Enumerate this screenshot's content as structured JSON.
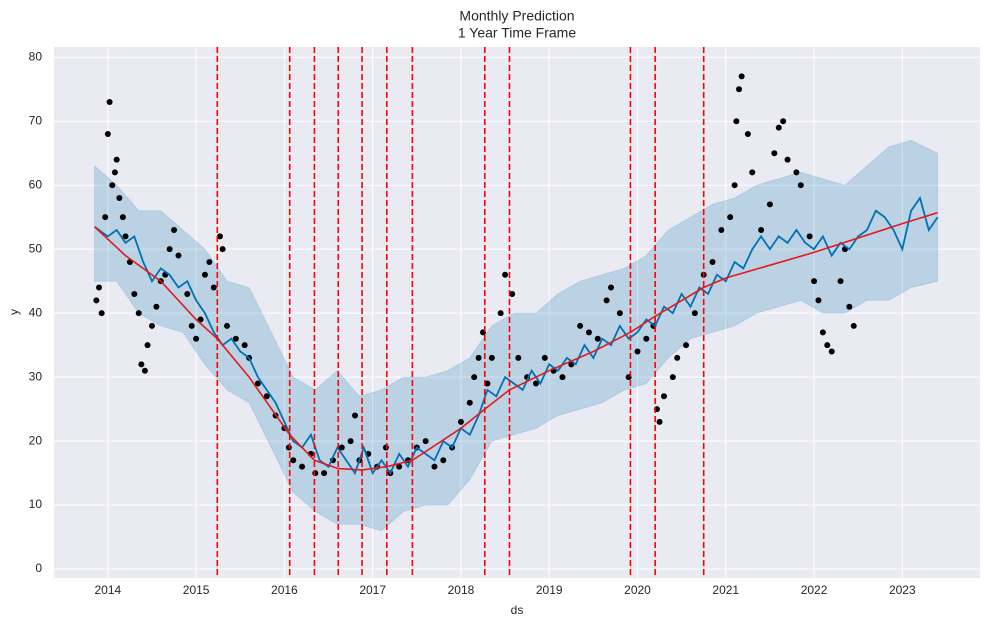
{
  "chart_data": {
    "type": "line",
    "title": "Monthly Prediction",
    "subtitle": "1 Year Time Frame",
    "xlabel": "ds",
    "ylabel": "y",
    "xlim": [
      2013.39,
      2023.88
    ],
    "ylim": [
      -1.4,
      81.6
    ],
    "xticks": [
      2014,
      2015,
      2016,
      2017,
      2018,
      2019,
      2020,
      2021,
      2022,
      2023
    ],
    "yticks": [
      0,
      10,
      20,
      30,
      40,
      50,
      60,
      70,
      80
    ],
    "grid": true,
    "band": {
      "color": "#0072b2",
      "x": [
        2013.85,
        2014.1,
        2014.35,
        2014.6,
        2014.85,
        2015.1,
        2015.35,
        2015.6,
        2015.85,
        2016.1,
        2016.35,
        2016.6,
        2016.85,
        2017.1,
        2017.35,
        2017.6,
        2017.85,
        2018.1,
        2018.35,
        2018.6,
        2018.85,
        2019.1,
        2019.35,
        2019.6,
        2019.85,
        2020.1,
        2020.35,
        2020.6,
        2020.85,
        2021.1,
        2021.35,
        2021.6,
        2021.85,
        2022.1,
        2022.35,
        2022.6,
        2022.85,
        2023.1,
        2023.4
      ],
      "upper": [
        63,
        60,
        56,
        56,
        53,
        50,
        45,
        44,
        37,
        30,
        28,
        31,
        27,
        28,
        30,
        30,
        31,
        33,
        38,
        40,
        40,
        43,
        45,
        46,
        47,
        49,
        53,
        55,
        57,
        58,
        60,
        61,
        62,
        61,
        60,
        63,
        66,
        67,
        65
      ],
      "lower": [
        45,
        45,
        40,
        38,
        37,
        32,
        28,
        26,
        19,
        12,
        9,
        7,
        7,
        6,
        9,
        10,
        10,
        14,
        20,
        21,
        22,
        24,
        25,
        26,
        28,
        29,
        33,
        36,
        37,
        38,
        40,
        41,
        42,
        40,
        40,
        42,
        42,
        44,
        45
      ]
    },
    "forecast": {
      "color": "#0072b2",
      "x": [
        2013.85,
        2014.0,
        2014.1,
        2014.2,
        2014.3,
        2014.4,
        2014.5,
        2014.6,
        2014.7,
        2014.8,
        2014.9,
        2015.0,
        2015.1,
        2015.2,
        2015.3,
        2015.4,
        2015.5,
        2015.6,
        2015.7,
        2015.8,
        2015.9,
        2016.0,
        2016.1,
        2016.2,
        2016.3,
        2016.4,
        2016.5,
        2016.6,
        2016.7,
        2016.8,
        2016.9,
        2017.0,
        2017.1,
        2017.2,
        2017.3,
        2017.4,
        2017.5,
        2017.6,
        2017.7,
        2017.8,
        2017.9,
        2018.0,
        2018.1,
        2018.2,
        2018.3,
        2018.4,
        2018.5,
        2018.6,
        2018.7,
        2018.8,
        2018.9,
        2019.0,
        2019.1,
        2019.2,
        2019.3,
        2019.4,
        2019.5,
        2019.6,
        2019.7,
        2019.8,
        2019.9,
        2020.0,
        2020.1,
        2020.2,
        2020.3,
        2020.4,
        2020.5,
        2020.6,
        2020.7,
        2020.8,
        2020.9,
        2021.0,
        2021.1,
        2021.2,
        2021.3,
        2021.4,
        2021.5,
        2021.6,
        2021.7,
        2021.8,
        2021.9,
        2022.0,
        2022.1,
        2022.2,
        2022.3,
        2022.4,
        2022.5,
        2022.6,
        2022.7,
        2022.8,
        2022.9,
        2023.0,
        2023.1,
        2023.2,
        2023.3,
        2023.4
      ],
      "values": [
        53.5,
        52,
        53,
        51,
        52,
        48,
        45,
        47,
        46,
        44,
        45,
        42,
        40,
        37,
        35,
        36,
        34,
        33,
        30,
        28,
        26,
        23,
        20,
        19,
        21,
        17,
        16,
        19,
        17,
        15,
        19,
        15,
        17,
        15,
        18,
        16,
        19,
        18,
        17,
        20,
        19,
        22,
        21,
        24,
        28,
        27,
        30,
        29,
        28,
        31,
        29,
        32,
        31,
        33,
        32,
        35,
        33,
        36,
        35,
        38,
        36,
        37,
        39,
        38,
        41,
        40,
        43,
        41,
        44,
        43,
        46,
        45,
        48,
        47,
        50,
        52,
        50,
        52,
        51,
        53,
        51,
        50,
        52,
        49,
        51,
        50,
        52,
        53,
        56,
        55,
        53,
        50,
        56,
        58,
        53,
        55
      ]
    },
    "trend": {
      "color": "#e41a1c",
      "x": [
        2013.85,
        2014.2,
        2014.6,
        2015.0,
        2015.24,
        2015.6,
        2016.06,
        2016.34,
        2016.61,
        2016.88,
        2017.16,
        2017.45,
        2018.0,
        2018.27,
        2018.55,
        2019.0,
        2019.5,
        2019.92,
        2020.2,
        2020.75,
        2021.0,
        2022.0,
        2023.0,
        2023.4
      ],
      "values": [
        53.5,
        49,
        45,
        39,
        36,
        30,
        21,
        17,
        15.7,
        15.5,
        16,
        17,
        22,
        25,
        28,
        31,
        34,
        37,
        39.5,
        44,
        45.5,
        49.5,
        54,
        55.7
      ]
    },
    "changepoints": {
      "color": "#ff0000",
      "x": [
        2015.24,
        2016.06,
        2016.34,
        2016.61,
        2016.88,
        2017.16,
        2017.45,
        2018.27,
        2018.55,
        2019.92,
        2020.2,
        2020.75
      ]
    },
    "points": {
      "color": "#000000",
      "x": [
        2013.87,
        2013.9,
        2013.93,
        2013.97,
        2014.0,
        2014.02,
        2014.05,
        2014.08,
        2014.1,
        2014.13,
        2014.17,
        2014.2,
        2014.25,
        2014.3,
        2014.35,
        2014.38,
        2014.42,
        2014.45,
        2014.5,
        2014.55,
        2014.6,
        2014.65,
        2014.7,
        2014.75,
        2014.8,
        2014.9,
        2014.95,
        2015.0,
        2015.05,
        2015.1,
        2015.15,
        2015.2,
        2015.27,
        2015.3,
        2015.35,
        2015.45,
        2015.55,
        2015.6,
        2015.7,
        2015.8,
        2015.9,
        2016.0,
        2016.05,
        2016.1,
        2016.2,
        2016.3,
        2016.35,
        2016.45,
        2016.55,
        2016.65,
        2016.75,
        2016.8,
        2016.85,
        2016.95,
        2017.05,
        2017.15,
        2017.2,
        2017.3,
        2017.4,
        2017.5,
        2017.6,
        2017.7,
        2017.8,
        2017.9,
        2018.0,
        2018.1,
        2018.15,
        2018.2,
        2018.25,
        2018.3,
        2018.35,
        2018.45,
        2018.5,
        2018.58,
        2018.65,
        2018.75,
        2018.85,
        2018.95,
        2019.05,
        2019.15,
        2019.25,
        2019.35,
        2019.45,
        2019.55,
        2019.65,
        2019.7,
        2019.8,
        2019.9,
        2020.0,
        2020.1,
        2020.18,
        2020.22,
        2020.25,
        2020.3,
        2020.4,
        2020.45,
        2020.55,
        2020.65,
        2020.75,
        2020.85,
        2020.95,
        2021.05,
        2021.1,
        2021.12,
        2021.15,
        2021.18,
        2021.25,
        2021.3,
        2021.4,
        2021.5,
        2021.55,
        2021.6,
        2021.65,
        2021.7,
        2021.8,
        2021.85,
        2021.95,
        2022.0,
        2022.05,
        2022.1,
        2022.15,
        2022.2,
        2022.3,
        2022.35,
        2022.4,
        2022.45
      ],
      "y": [
        42,
        44,
        40,
        55,
        68,
        73,
        60,
        62,
        64,
        58,
        55,
        52,
        48,
        43,
        40,
        32,
        31,
        35,
        38,
        41,
        45,
        46,
        50,
        53,
        49,
        43,
        38,
        36,
        39,
        46,
        48,
        44,
        52,
        50,
        38,
        36,
        35,
        33,
        29,
        27,
        24,
        22,
        19,
        17,
        16,
        18,
        15,
        15,
        17,
        19,
        20,
        24,
        17,
        18,
        16,
        19,
        15,
        16,
        17,
        19,
        20,
        16,
        17,
        19,
        23,
        26,
        30,
        33,
        37,
        29,
        33,
        40,
        46,
        43,
        33,
        30,
        29,
        33,
        31,
        30,
        32,
        38,
        37,
        36,
        42,
        44,
        40,
        30,
        34,
        36,
        38,
        25,
        23,
        27,
        30,
        33,
        35,
        40,
        46,
        48,
        53,
        55,
        60,
        70,
        75,
        77,
        68,
        62,
        53,
        57,
        65,
        69,
        70,
        64,
        62,
        60,
        52,
        45,
        42,
        37,
        35,
        34,
        45,
        50,
        41,
        38
      ]
    }
  }
}
